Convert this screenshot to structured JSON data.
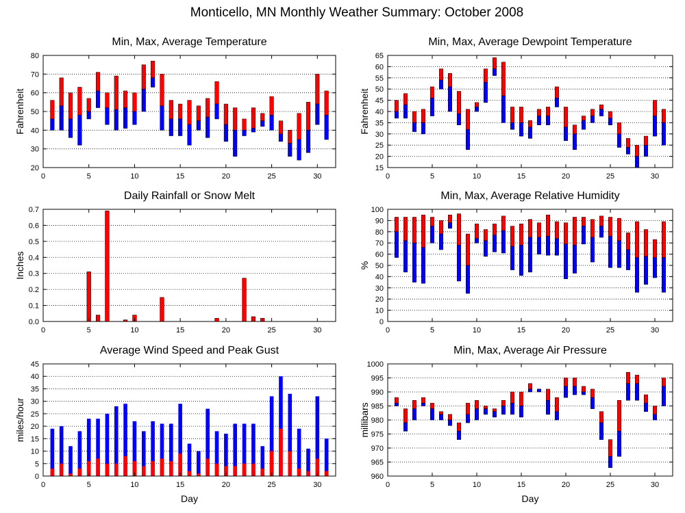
{
  "figure": {
    "title": "Monticello, MN Monthly Weather Summary: October 2008",
    "colors": {
      "high_segment": "#ff0000",
      "low_segment": "#0000ff",
      "grid": "#000000",
      "frame": "#000000"
    }
  },
  "chart_data": [
    {
      "id": "temperature",
      "type": "bar",
      "title": "Min, Max, Average Temperature",
      "xlabel": "",
      "ylabel": "Fahrenheit",
      "xlim": [
        0,
        32
      ],
      "ylim": [
        20,
        80
      ],
      "xticks": [
        0,
        5,
        10,
        15,
        20,
        25,
        30
      ],
      "yticks": [
        20,
        30,
        40,
        50,
        60,
        70,
        80
      ],
      "grid": "horizontal-dotted",
      "x": [
        1,
        2,
        3,
        4,
        5,
        6,
        7,
        8,
        9,
        10,
        11,
        12,
        13,
        14,
        15,
        16,
        17,
        18,
        19,
        20,
        21,
        22,
        23,
        24,
        25,
        26,
        27,
        28,
        29,
        30,
        31
      ],
      "series": [
        {
          "name": "Max",
          "values": [
            56,
            68,
            60,
            63,
            57,
            71,
            60,
            69,
            61,
            60,
            75,
            77,
            70,
            56,
            54,
            56,
            53,
            57,
            66,
            54,
            52,
            46,
            52,
            49,
            58,
            45,
            40,
            49,
            55,
            70,
            61
          ]
        },
        {
          "name": "Average",
          "values": [
            46,
            53,
            46,
            48,
            50,
            61,
            52,
            51,
            52,
            50,
            62,
            68,
            53,
            46,
            46,
            43,
            45,
            47,
            54,
            43,
            40,
            40,
            41,
            45,
            48,
            38,
            33,
            35,
            40,
            54,
            48
          ]
        },
        {
          "name": "Min",
          "values": [
            40,
            40,
            36,
            32,
            46,
            52,
            43,
            40,
            41,
            43,
            50,
            63,
            40,
            37,
            37,
            32,
            40,
            36,
            46,
            34,
            26,
            37,
            39,
            42,
            40,
            34,
            26,
            24,
            28,
            43,
            35
          ]
        }
      ]
    },
    {
      "id": "dewpoint",
      "type": "bar",
      "title": "Min, Max, Average Dewpoint Temperature",
      "xlabel": "",
      "ylabel": "Fahrenheit",
      "xlim": [
        0,
        32
      ],
      "ylim": [
        15,
        65
      ],
      "xticks": [
        0,
        5,
        10,
        15,
        20,
        25,
        30
      ],
      "yticks": [
        15,
        20,
        25,
        30,
        35,
        40,
        45,
        50,
        55,
        60,
        65
      ],
      "grid": "horizontal-dotted",
      "x": [
        1,
        2,
        3,
        4,
        5,
        6,
        7,
        8,
        9,
        10,
        11,
        12,
        13,
        14,
        15,
        16,
        17,
        18,
        19,
        20,
        21,
        22,
        23,
        24,
        25,
        26,
        27,
        28,
        29,
        30,
        31
      ],
      "series": [
        {
          "name": "Max",
          "values": [
            45,
            48,
            40,
            41,
            51,
            59,
            57,
            49,
            41,
            44,
            59,
            64,
            62,
            42,
            42,
            36,
            41,
            42,
            51,
            42,
            34,
            38,
            41,
            43,
            40,
            35,
            28,
            25,
            29,
            45,
            41
          ]
        },
        {
          "name": "Average",
          "values": [
            40,
            43,
            35,
            35,
            46,
            54,
            51,
            39,
            32,
            42,
            53,
            59,
            47,
            35,
            35,
            33,
            38,
            38,
            46,
            33,
            30,
            36,
            38,
            41,
            37,
            30,
            24,
            20,
            25,
            38,
            35
          ]
        },
        {
          "name": "Min",
          "values": [
            37,
            37,
            31,
            30,
            38,
            50,
            40,
            34,
            23,
            40,
            44,
            56,
            35,
            32,
            29,
            28,
            34,
            34,
            42,
            27,
            23,
            32,
            35,
            38,
            34,
            24,
            21,
            15,
            20,
            29,
            25
          ]
        }
      ]
    },
    {
      "id": "rainfall",
      "type": "bar",
      "title": "Daily Rainfall or Snow Melt",
      "xlabel": "",
      "ylabel": "Inches",
      "xlim": [
        0,
        32
      ],
      "ylim": [
        0,
        0.7
      ],
      "xticks": [
        0,
        5,
        10,
        15,
        20,
        25,
        30
      ],
      "yticks": [
        0.0,
        0.1,
        0.2,
        0.3,
        0.4,
        0.5,
        0.6,
        0.7
      ],
      "ytick_labels": [
        "0.0",
        "0.1",
        "0.2",
        "0.3",
        "0.4",
        "0.5",
        "0.6",
        "0.7"
      ],
      "grid": "horizontal-dotted",
      "x": [
        1,
        2,
        3,
        4,
        5,
        6,
        7,
        8,
        9,
        10,
        11,
        12,
        13,
        14,
        15,
        16,
        17,
        18,
        19,
        20,
        21,
        22,
        23,
        24,
        25,
        26,
        27,
        28,
        29,
        30,
        31
      ],
      "series": [
        {
          "name": "Rainfall",
          "values": [
            0,
            0,
            0,
            0,
            0.31,
            0.04,
            0.69,
            0,
            0.01,
            0.04,
            0,
            0,
            0.15,
            0,
            0,
            0,
            0,
            0,
            0.02,
            0,
            0,
            0.27,
            0.03,
            0.02,
            0,
            0,
            0,
            0,
            0,
            0,
            0
          ]
        }
      ]
    },
    {
      "id": "humidity",
      "type": "bar",
      "title": "Min, Max, Average Relative Humidity",
      "xlabel": "",
      "ylabel": "%",
      "xlim": [
        0,
        32
      ],
      "ylim": [
        0,
        100
      ],
      "xticks": [
        0,
        5,
        10,
        15,
        20,
        25,
        30
      ],
      "yticks": [
        0,
        10,
        20,
        30,
        40,
        50,
        60,
        70,
        80,
        90,
        100
      ],
      "grid": "horizontal-dotted",
      "x": [
        1,
        2,
        3,
        4,
        5,
        6,
        7,
        8,
        9,
        10,
        11,
        12,
        13,
        14,
        15,
        16,
        17,
        18,
        19,
        20,
        21,
        22,
        23,
        24,
        25,
        26,
        27,
        28,
        29,
        30,
        31
      ],
      "series": [
        {
          "name": "Max",
          "values": [
            93,
            93,
            93,
            95,
            93,
            90,
            95,
            96,
            78,
            87,
            82,
            87,
            94,
            85,
            87,
            91,
            88,
            95,
            89,
            88,
            93,
            93,
            91,
            94,
            93,
            92,
            79,
            89,
            82,
            73,
            89
          ]
        },
        {
          "name": "Average",
          "values": [
            80,
            72,
            70,
            66,
            85,
            78,
            88,
            68,
            50,
            74,
            72,
            77,
            81,
            67,
            68,
            75,
            75,
            76,
            74,
            69,
            68,
            85,
            75,
            85,
            76,
            72,
            64,
            57,
            58,
            57,
            57
          ]
        },
        {
          "name": "Min",
          "values": [
            57,
            44,
            35,
            34,
            70,
            64,
            83,
            36,
            25,
            70,
            58,
            62,
            61,
            46,
            41,
            44,
            60,
            59,
            59,
            38,
            43,
            69,
            53,
            75,
            48,
            48,
            46,
            26,
            33,
            39,
            26
          ]
        }
      ]
    },
    {
      "id": "wind",
      "type": "bar",
      "title": "Average Wind Speed and Peak Gust",
      "xlabel": "Day",
      "ylabel": "miles/hour",
      "xlim": [
        0,
        32
      ],
      "ylim": [
        0,
        45
      ],
      "xticks": [
        0,
        5,
        10,
        15,
        20,
        25,
        30
      ],
      "yticks": [
        0,
        5,
        10,
        15,
        20,
        25,
        30,
        35,
        40,
        45
      ],
      "grid": "horizontal-dotted",
      "x": [
        1,
        2,
        3,
        4,
        5,
        6,
        7,
        8,
        9,
        10,
        11,
        12,
        13,
        14,
        15,
        16,
        17,
        18,
        19,
        20,
        21,
        22,
        23,
        24,
        25,
        26,
        27,
        28,
        29,
        30,
        31
      ],
      "series": [
        {
          "name": "Peak Gust",
          "values": [
            19,
            20,
            12,
            18,
            23,
            23,
            25,
            28,
            29,
            22,
            18,
            22,
            21,
            21,
            29,
            13,
            10,
            27,
            18,
            17,
            21,
            21,
            21,
            12,
            32,
            40,
            33,
            19,
            11,
            32,
            15
          ]
        },
        {
          "name": "Average Wind Speed",
          "values": [
            3,
            5,
            1,
            3,
            6,
            7,
            5,
            5,
            8,
            6,
            4,
            6,
            7,
            6,
            9,
            2,
            1,
            7,
            5,
            4,
            4,
            5,
            5,
            3,
            10,
            19,
            10,
            3,
            2,
            7,
            2
          ]
        }
      ]
    },
    {
      "id": "pressure",
      "type": "bar",
      "title": "Min, Max, Average Air Pressure",
      "xlabel": "Day",
      "ylabel": "millibars",
      "xlim": [
        0,
        32
      ],
      "ylim": [
        960,
        1000
      ],
      "xticks": [
        0,
        5,
        10,
        15,
        20,
        25,
        30
      ],
      "yticks": [
        960,
        965,
        970,
        975,
        980,
        985,
        990,
        995,
        1000
      ],
      "grid": "horizontal-dotted",
      "x": [
        1,
        2,
        3,
        4,
        5,
        6,
        7,
        8,
        9,
        10,
        11,
        12,
        13,
        14,
        15,
        16,
        17,
        18,
        19,
        20,
        21,
        22,
        23,
        24,
        25,
        26,
        27,
        28,
        29,
        30,
        31
      ],
      "series": [
        {
          "name": "Max",
          "values": [
            988,
            984,
            987,
            988,
            986,
            983,
            982,
            979,
            986,
            987,
            985,
            984,
            987,
            990,
            990,
            993,
            991,
            991,
            988,
            995,
            995,
            992,
            991,
            983,
            973,
            987,
            997,
            996,
            989,
            985,
            995
          ]
        },
        {
          "name": "Average",
          "values": [
            986,
            979,
            984,
            986,
            984,
            982,
            980,
            976,
            982,
            984,
            984,
            983,
            985,
            986,
            985,
            991,
            991,
            987,
            983,
            992,
            992,
            990,
            988,
            979,
            967,
            976,
            993,
            993,
            986,
            982,
            992
          ]
        },
        {
          "name": "Min",
          "values": [
            985,
            976,
            980,
            985,
            980,
            980,
            978,
            973,
            979,
            980,
            982,
            981,
            982,
            982,
            981,
            990,
            990,
            982,
            980,
            988,
            989,
            989,
            984,
            973,
            963,
            967,
            987,
            987,
            983,
            980,
            985
          ]
        }
      ]
    }
  ]
}
